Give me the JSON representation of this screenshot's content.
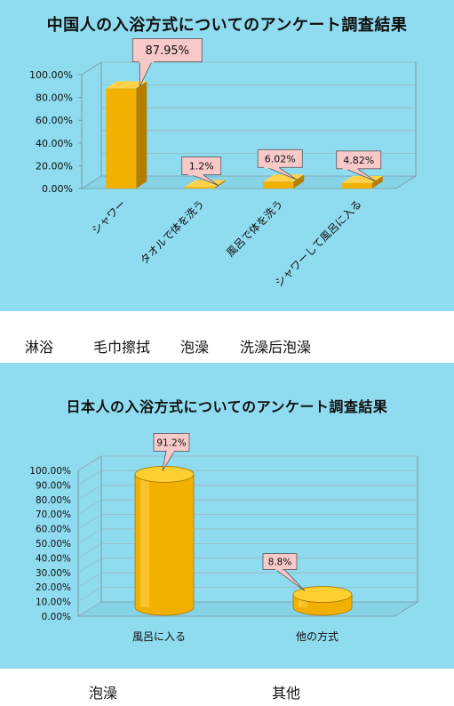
{
  "chart_data": [
    {
      "type": "bar",
      "title": "中国人の入浴方式についてのアンケート調査結果",
      "categories": [
        "シャワー",
        "タオルで体を洗う",
        "風呂で体を洗う",
        "シャワーして風呂に入る"
      ],
      "values": [
        87.95,
        1.2,
        6.02,
        4.82
      ],
      "data_labels": [
        "87.95%",
        "1.2%",
        "6.02%",
        "4.82%"
      ],
      "y_ticks": [
        "0.00%",
        "20.00%",
        "40.00%",
        "60.00%",
        "80.00%",
        "100.00%"
      ],
      "ylim": [
        0,
        100
      ],
      "bar_color": "#f2b000",
      "callout_color": "#f7c9c9"
    },
    {
      "type": "bar",
      "title": "日本人の入浴方式についてのアンケート調査結果",
      "categories": [
        "風呂に入る",
        "他の方式"
      ],
      "values": [
        91.2,
        8.8
      ],
      "data_labels": [
        "91.2%",
        "8.8%"
      ],
      "y_ticks": [
        "0.00%",
        "10.00%",
        "20.00%",
        "30.00%",
        "40.00%",
        "50.00%",
        "60.00%",
        "70.00%",
        "80.00%",
        "90.00%",
        "100.00%"
      ],
      "ylim": [
        0,
        100
      ],
      "bar_color": "#f2b000",
      "callout_color": "#f7c9c9"
    }
  ],
  "captions": {
    "chart1": [
      "淋浴",
      "毛巾擦拭",
      "泡澡",
      "洗澡后泡澡"
    ],
    "chart2": [
      "泡澡",
      "其他"
    ]
  }
}
